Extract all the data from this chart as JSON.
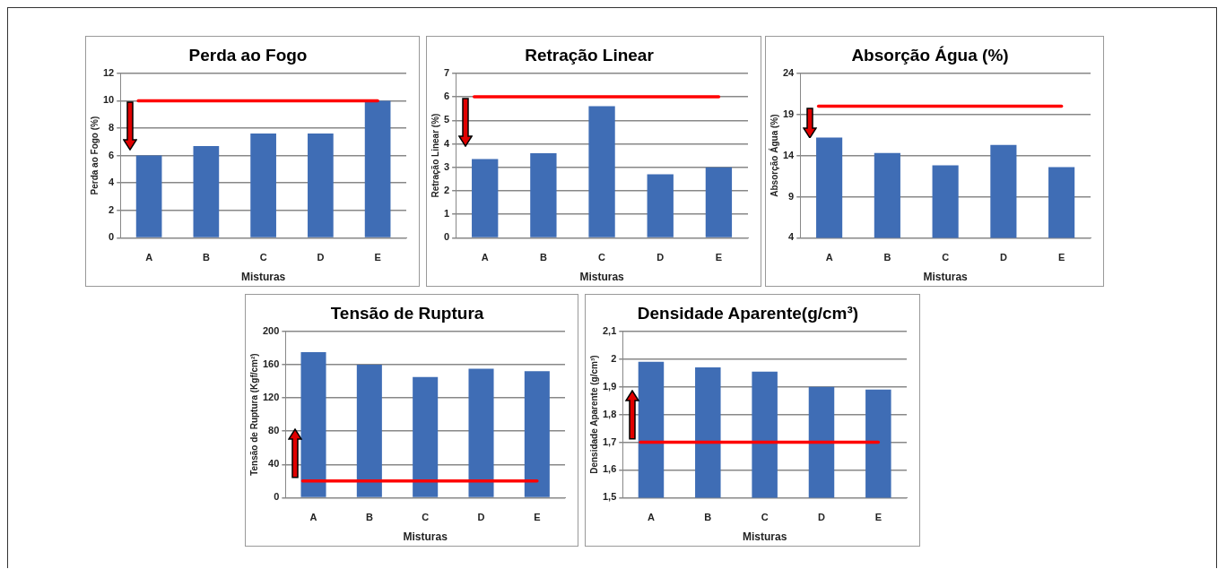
{
  "chart_data": [
    {
      "type": "bar",
      "title": "Perda ao Fogo",
      "xlabel": "Misturas",
      "ylabel": "Perda ao Fogo (%)",
      "categories": [
        "A",
        "B",
        "C",
        "D",
        "E"
      ],
      "values": [
        6,
        6.7,
        7.6,
        7.6,
        10
      ],
      "color": "#3f6db5",
      "ylim": [
        0,
        12
      ],
      "yticks": [
        0,
        2,
        4,
        6,
        8,
        10,
        12
      ],
      "grid": "y",
      "legend": false,
      "ref_lines": [
        {
          "axis": "y",
          "value": 10,
          "color": "#ff0000"
        }
      ]
    },
    {
      "type": "bar",
      "title": "Retração Linear",
      "xlabel": "Misturas",
      "ylabel": "Retração Linear (%)",
      "categories": [
        "A",
        "B",
        "C",
        "D",
        "E"
      ],
      "values": [
        3.35,
        3.6,
        5.6,
        2.7,
        3
      ],
      "color": "#3f6db5",
      "ylim": [
        0,
        7
      ],
      "yticks": [
        0,
        1,
        2,
        3,
        4,
        5,
        6,
        7
      ],
      "grid": "y",
      "legend": false,
      "ref_lines": [
        {
          "axis": "y",
          "value": 6,
          "color": "#ff0000"
        }
      ]
    },
    {
      "type": "bar",
      "title": "Absorção Água (%)",
      "xlabel": "Misturas",
      "ylabel": "Absorção Água (%)",
      "categories": [
        "A",
        "B",
        "C",
        "D",
        "E"
      ],
      "values": [
        16.2,
        14.3,
        12.8,
        15.3,
        12.6
      ],
      "color": "#3f6db5",
      "ylim": [
        4,
        24
      ],
      "yticks": [
        4,
        9,
        14,
        19,
        24
      ],
      "grid": "y",
      "legend": false,
      "ref_lines": [
        {
          "axis": "y",
          "value": 20,
          "color": "#ff0000"
        }
      ]
    },
    {
      "type": "bar",
      "title": "Tensão de Ruptura",
      "xlabel": "Misturas",
      "ylabel": "Tensão de Ruptura (Kgf/cm²)",
      "categories": [
        "A",
        "B",
        "C",
        "D",
        "E"
      ],
      "values": [
        175,
        160,
        145,
        155,
        152
      ],
      "color": "#3f6db5",
      "ylim": [
        0,
        200
      ],
      "yticks": [
        0,
        40,
        80,
        120,
        160,
        200
      ],
      "grid": "y",
      "legend": false,
      "ref_lines": [
        {
          "axis": "y",
          "value": 20,
          "color": "#ff0000"
        }
      ]
    },
    {
      "type": "bar",
      "title": "Densidade Aparente(g/cm³)",
      "xlabel": "Misturas",
      "ylabel": "Densidade Aparente (g/cm³)",
      "categories": [
        "A",
        "B",
        "C",
        "D",
        "E"
      ],
      "values": [
        1.99,
        1.97,
        1.955,
        1.9,
        1.89
      ],
      "color": "#3f6db5",
      "ylim": [
        1.5,
        2.1
      ],
      "yticks": [
        {
          "value": 1.5,
          "label": "1,5"
        },
        {
          "value": 1.6,
          "label": "1,6"
        },
        {
          "value": 1.7,
          "label": "1,7"
        },
        {
          "value": 1.8,
          "label": "1,8"
        },
        {
          "value": 1.9,
          "label": "1,9"
        },
        2,
        {
          "value": 2.1,
          "label": "2,1"
        }
      ],
      "grid": "y",
      "legend": false,
      "ref_lines": [
        {
          "axis": "y",
          "value": 1.7,
          "color": "#ff0000"
        }
      ]
    }
  ]
}
